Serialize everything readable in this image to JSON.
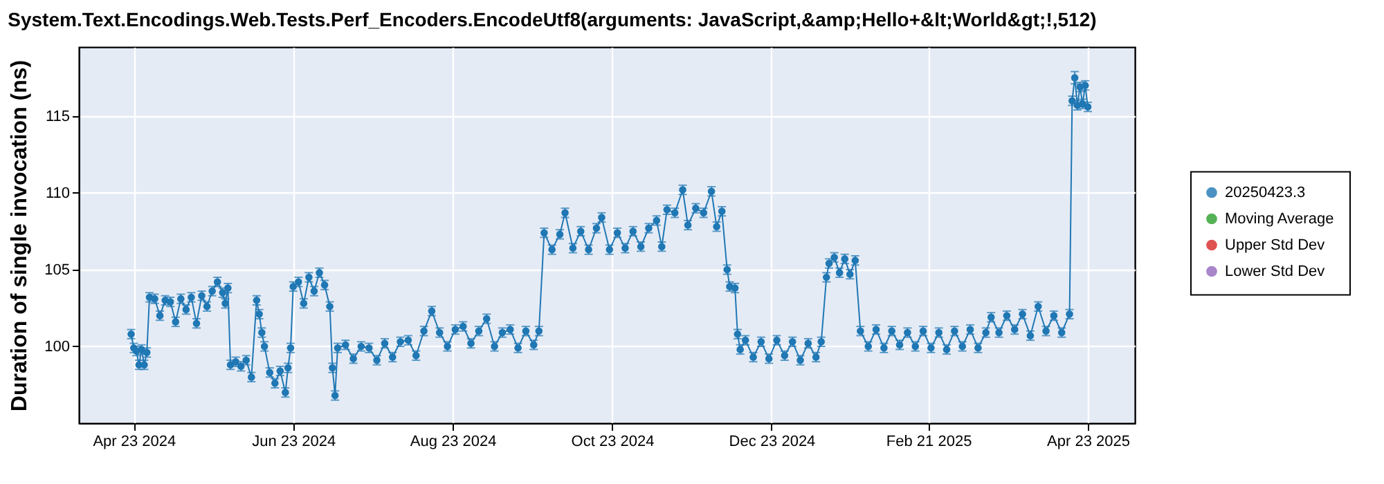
{
  "chart_data": {
    "type": "line",
    "title": "System.Text.Encodings.Web.Tests.Perf_Encoders.EncodeUtf8(arguments: JavaScript,&amp;Hello+&lt;World&gt;!,512)",
    "ylabel": "Duration of single invocation (ns)",
    "x": [
      "2024-04-22",
      "2024-04-23",
      "2024-04-24",
      "2024-04-25",
      "2024-04-26",
      "2024-04-27",
      "2024-04-28",
      "2024-04-29",
      "2024-05-01",
      "2024-05-03",
      "2024-05-05",
      "2024-05-07",
      "2024-05-09",
      "2024-05-11",
      "2024-05-13",
      "2024-05-15",
      "2024-05-17",
      "2024-05-19",
      "2024-05-21",
      "2024-05-23",
      "2024-05-25",
      "2024-05-27",
      "2024-05-28",
      "2024-05-29",
      "2024-05-30",
      "2024-06-01",
      "2024-06-03",
      "2024-06-05",
      "2024-06-07",
      "2024-06-09",
      "2024-06-10",
      "2024-06-11",
      "2024-06-12",
      "2024-06-14",
      "2024-06-16",
      "2024-06-18",
      "2024-06-20",
      "2024-06-21",
      "2024-06-22",
      "2024-06-23",
      "2024-06-25",
      "2024-06-27",
      "2024-06-29",
      "2024-07-01",
      "2024-07-03",
      "2024-07-05",
      "2024-07-07",
      "2024-07-08",
      "2024-07-09",
      "2024-07-10",
      "2024-07-13",
      "2024-07-16",
      "2024-07-19",
      "2024-07-22",
      "2024-07-25",
      "2024-07-28",
      "2024-07-31",
      "2024-08-03",
      "2024-08-06",
      "2024-08-09",
      "2024-08-12",
      "2024-08-15",
      "2024-08-18",
      "2024-08-21",
      "2024-08-24",
      "2024-08-27",
      "2024-08-30",
      "2024-09-02",
      "2024-09-05",
      "2024-09-08",
      "2024-09-11",
      "2024-09-14",
      "2024-09-17",
      "2024-09-20",
      "2024-09-23",
      "2024-09-25",
      "2024-09-27",
      "2024-09-30",
      "2024-10-03",
      "2024-10-05",
      "2024-10-08",
      "2024-10-11",
      "2024-10-14",
      "2024-10-17",
      "2024-10-19",
      "2024-10-22",
      "2024-10-25",
      "2024-10-28",
      "2024-10-31",
      "2024-11-03",
      "2024-11-06",
      "2024-11-09",
      "2024-11-11",
      "2024-11-13",
      "2024-11-16",
      "2024-11-19",
      "2024-11-21",
      "2024-11-24",
      "2024-11-27",
      "2024-11-30",
      "2024-12-02",
      "2024-12-04",
      "2024-12-06",
      "2024-12-07",
      "2024-12-09",
      "2024-12-10",
      "2024-12-11",
      "2024-12-13",
      "2024-12-16",
      "2024-12-19",
      "2024-12-22",
      "2024-12-25",
      "2024-12-28",
      "2024-12-31",
      "2025-01-03",
      "2025-01-06",
      "2025-01-09",
      "2025-01-11",
      "2025-01-13",
      "2025-01-14",
      "2025-01-16",
      "2025-01-18",
      "2025-01-20",
      "2025-01-22",
      "2025-01-24",
      "2025-01-26",
      "2025-01-29",
      "2025-02-01",
      "2025-02-04",
      "2025-02-07",
      "2025-02-10",
      "2025-02-13",
      "2025-02-16",
      "2025-02-19",
      "2025-02-22",
      "2025-02-25",
      "2025-02-28",
      "2025-03-03",
      "2025-03-06",
      "2025-03-09",
      "2025-03-12",
      "2025-03-15",
      "2025-03-17",
      "2025-03-20",
      "2025-03-23",
      "2025-03-26",
      "2025-03-29",
      "2025-04-01",
      "2025-04-04",
      "2025-04-07",
      "2025-04-10",
      "2025-04-13",
      "2025-04-16",
      "2025-04-17",
      "2025-04-18",
      "2025-04-19",
      "2025-04-20",
      "2025-04-21",
      "2025-04-22",
      "2025-04-23"
    ],
    "series": [
      {
        "name": "20250423.3",
        "color": "#1f77b4",
        "values": [
          100.8,
          99.9,
          99.7,
          98.8,
          99.8,
          98.8,
          99.6,
          103.2,
          103.1,
          102.0,
          103.0,
          102.9,
          101.6,
          103.1,
          102.4,
          103.2,
          101.5,
          103.3,
          102.6,
          103.6,
          104.2,
          103.5,
          102.8,
          103.8,
          98.8,
          99.0,
          98.7,
          99.1,
          98.0,
          103.0,
          102.1,
          100.9,
          100.0,
          98.3,
          97.6,
          98.4,
          97.0,
          98.6,
          99.9,
          103.9,
          104.2,
          102.8,
          104.5,
          103.6,
          104.8,
          104.0,
          102.6,
          98.6,
          96.8,
          99.9,
          100.1,
          99.2,
          100.0,
          99.9,
          99.1,
          100.2,
          99.3,
          100.3,
          100.4,
          99.4,
          101.0,
          102.3,
          100.9,
          100.0,
          101.1,
          101.3,
          100.2,
          101.0,
          101.8,
          100.0,
          100.9,
          101.1,
          99.9,
          101.0,
          100.1,
          101.0,
          107.4,
          106.3,
          107.3,
          108.7,
          106.4,
          107.5,
          106.3,
          107.7,
          108.4,
          106.3,
          107.4,
          106.4,
          107.5,
          106.5,
          107.7,
          108.2,
          106.5,
          108.9,
          108.7,
          110.2,
          107.9,
          109.0,
          108.7,
          110.1,
          107.8,
          108.8,
          105.0,
          103.9,
          103.8,
          100.8,
          99.8,
          100.4,
          99.3,
          100.3,
          99.2,
          100.4,
          99.4,
          100.3,
          99.1,
          100.2,
          99.3,
          100.3,
          104.5,
          105.4,
          105.8,
          104.8,
          105.7,
          104.7,
          105.6,
          101.0,
          100.0,
          101.1,
          99.9,
          101.0,
          100.1,
          100.9,
          100.0,
          101.0,
          99.9,
          100.9,
          99.8,
          101.0,
          100.0,
          101.1,
          99.9,
          100.9,
          101.9,
          100.9,
          102.0,
          101.1,
          102.1,
          100.7,
          102.6,
          101.0,
          102.0,
          100.9,
          102.1,
          116.0,
          117.5,
          115.7,
          116.9,
          115.8,
          117.0,
          115.6
        ],
        "errors": [
          0.3,
          0.3,
          0.3,
          0.3,
          0.3,
          0.3,
          0.3,
          0.3,
          0.3,
          0.3,
          0.3,
          0.3,
          0.3,
          0.3,
          0.3,
          0.3,
          0.3,
          0.3,
          0.3,
          0.3,
          0.3,
          0.3,
          0.3,
          0.3,
          0.3,
          0.3,
          0.3,
          0.3,
          0.3,
          0.3,
          0.3,
          0.3,
          0.3,
          0.3,
          0.3,
          0.3,
          0.3,
          0.3,
          0.3,
          0.3,
          0.3,
          0.3,
          0.3,
          0.3,
          0.3,
          0.3,
          0.3,
          0.3,
          0.3,
          0.3,
          0.3,
          0.3,
          0.3,
          0.3,
          0.3,
          0.3,
          0.3,
          0.3,
          0.3,
          0.3,
          0.3,
          0.3,
          0.3,
          0.3,
          0.3,
          0.3,
          0.3,
          0.3,
          0.3,
          0.3,
          0.3,
          0.3,
          0.3,
          0.3,
          0.3,
          0.3,
          0.3,
          0.3,
          0.3,
          0.3,
          0.3,
          0.3,
          0.3,
          0.3,
          0.3,
          0.3,
          0.3,
          0.3,
          0.3,
          0.3,
          0.3,
          0.3,
          0.3,
          0.3,
          0.3,
          0.3,
          0.3,
          0.3,
          0.3,
          0.3,
          0.3,
          0.3,
          0.3,
          0.3,
          0.3,
          0.3,
          0.3,
          0.3,
          0.3,
          0.3,
          0.3,
          0.3,
          0.3,
          0.3,
          0.3,
          0.3,
          0.3,
          0.3,
          0.3,
          0.3,
          0.3,
          0.3,
          0.3,
          0.3,
          0.3,
          0.3,
          0.3,
          0.3,
          0.3,
          0.3,
          0.3,
          0.3,
          0.3,
          0.3,
          0.3,
          0.3,
          0.3,
          0.3,
          0.3,
          0.3,
          0.3,
          0.3,
          0.3,
          0.3,
          0.3,
          0.3,
          0.3,
          0.3,
          0.3,
          0.3,
          0.3,
          0.3,
          0.3,
          0.3,
          0.4,
          0.3,
          0.3,
          0.3,
          0.3,
          0.3
        ]
      },
      {
        "name": "Moving Average",
        "color": "#2ca02c",
        "values": [
          null,
          null,
          null,
          null,
          null,
          null,
          null,
          null,
          null,
          null,
          null,
          null,
          null,
          null,
          null,
          null,
          null,
          null,
          null,
          null,
          null,
          null,
          null,
          null,
          null,
          null,
          null,
          null,
          null,
          null,
          null,
          null,
          null,
          null,
          null,
          null,
          null,
          null,
          null,
          null,
          null,
          null,
          null,
          null,
          null,
          null,
          null,
          null,
          null,
          null,
          null,
          null,
          null,
          null,
          null,
          null,
          null,
          null,
          null,
          null,
          null,
          null,
          null,
          null,
          null,
          null,
          null,
          null,
          null,
          null,
          null,
          null,
          null,
          null,
          null,
          null,
          null,
          null,
          null,
          null,
          null,
          null,
          null,
          null,
          null,
          null,
          null,
          null,
          null,
          null,
          null,
          null,
          null,
          null,
          null,
          null,
          null,
          null,
          null,
          null,
          null,
          null,
          null,
          null,
          null,
          null,
          null,
          null,
          null,
          null,
          null,
          null,
          null,
          null,
          null,
          null,
          null,
          null,
          null,
          null,
          null,
          null,
          null,
          null,
          null,
          null,
          null,
          null,
          null,
          null,
          null,
          null,
          null,
          null,
          null,
          null,
          null,
          null,
          null,
          null,
          null,
          null,
          null,
          null,
          null,
          null,
          null,
          null,
          null,
          null,
          null,
          null,
          null,
          null,
          null,
          null,
          null,
          null,
          null,
          null
        ]
      },
      {
        "name": "Upper Std Dev",
        "color": "#d62728",
        "values": [
          null,
          null,
          null,
          null,
          null,
          null,
          null,
          null,
          null,
          null,
          null,
          null,
          null,
          null,
          null,
          null,
          null,
          null,
          null,
          null,
          null,
          null,
          null,
          null,
          null,
          null,
          null,
          null,
          null,
          null,
          null,
          null,
          null,
          null,
          null,
          null,
          null,
          null,
          null,
          null,
          null,
          null,
          null,
          null,
          null,
          null,
          null,
          null,
          null,
          null,
          null,
          null,
          null,
          null,
          null,
          null,
          null,
          null,
          null,
          null,
          null,
          null,
          null,
          null,
          null,
          null,
          null,
          null,
          null,
          null,
          null,
          null,
          null,
          null,
          null,
          null,
          null,
          null,
          null,
          null,
          null,
          null,
          null,
          null,
          null,
          null,
          null,
          null,
          null,
          null,
          null,
          null,
          null,
          null,
          null,
          null,
          null,
          null,
          null,
          null,
          null,
          null,
          null,
          null,
          null,
          null,
          null,
          null,
          null,
          null,
          null,
          null,
          null,
          null,
          null,
          null,
          null,
          null,
          null,
          null,
          null,
          null,
          null,
          null,
          null,
          null,
          null,
          null,
          null,
          null,
          null,
          null,
          null,
          null,
          null,
          null,
          null,
          null,
          null,
          null,
          null,
          null,
          null,
          null,
          null,
          null,
          null,
          null,
          null,
          null,
          null,
          null,
          null,
          null,
          null,
          null,
          null,
          null,
          null,
          null
        ]
      },
      {
        "name": "Lower Std Dev",
        "color": "#9467bd",
        "values": [
          null,
          null,
          null,
          null,
          null,
          null,
          null,
          null,
          null,
          null,
          null,
          null,
          null,
          null,
          null,
          null,
          null,
          null,
          null,
          null,
          null,
          null,
          null,
          null,
          null,
          null,
          null,
          null,
          null,
          null,
          null,
          null,
          null,
          null,
          null,
          null,
          null,
          null,
          null,
          null,
          null,
          null,
          null,
          null,
          null,
          null,
          null,
          null,
          null,
          null,
          null,
          null,
          null,
          null,
          null,
          null,
          null,
          null,
          null,
          null,
          null,
          null,
          null,
          null,
          null,
          null,
          null,
          null,
          null,
          null,
          null,
          null,
          null,
          null,
          null,
          null,
          null,
          null,
          null,
          null,
          null,
          null,
          null,
          null,
          null,
          null,
          null,
          null,
          null,
          null,
          null,
          null,
          null,
          null,
          null,
          null,
          null,
          null,
          null,
          null,
          null,
          null,
          null,
          null,
          null,
          null,
          null,
          null,
          null,
          null,
          null,
          null,
          null,
          null,
          null,
          null,
          null,
          null,
          null,
          null,
          null,
          null,
          null,
          null,
          null,
          null,
          null,
          null,
          null,
          null,
          null,
          null,
          null,
          null,
          null,
          null,
          null,
          null,
          null,
          null,
          null,
          null,
          null,
          null,
          null,
          null,
          null,
          null,
          null,
          null,
          null,
          null,
          null,
          null,
          null,
          null,
          null,
          null,
          null,
          null
        ]
      }
    ],
    "xlim": [
      "2024-04-02",
      "2025-05-11"
    ],
    "xticks": [
      {
        "value": "2024-04-23",
        "label": "Apr 23 2024"
      },
      {
        "value": "2024-06-23",
        "label": "Jun 23 2024"
      },
      {
        "value": "2024-08-23",
        "label": "Aug 23 2024"
      },
      {
        "value": "2024-10-23",
        "label": "Oct 23 2024"
      },
      {
        "value": "2024-12-23",
        "label": "Dec 23 2024"
      },
      {
        "value": "2025-02-21",
        "label": "Feb 21 2025"
      },
      {
        "value": "2025-04-23",
        "label": "Apr 23 2025"
      }
    ],
    "ylim": [
      95,
      119.5
    ],
    "yticks": [
      100,
      105,
      110,
      115
    ],
    "grid": true,
    "legend": "right",
    "marker": "circle",
    "line_style": "solid"
  }
}
